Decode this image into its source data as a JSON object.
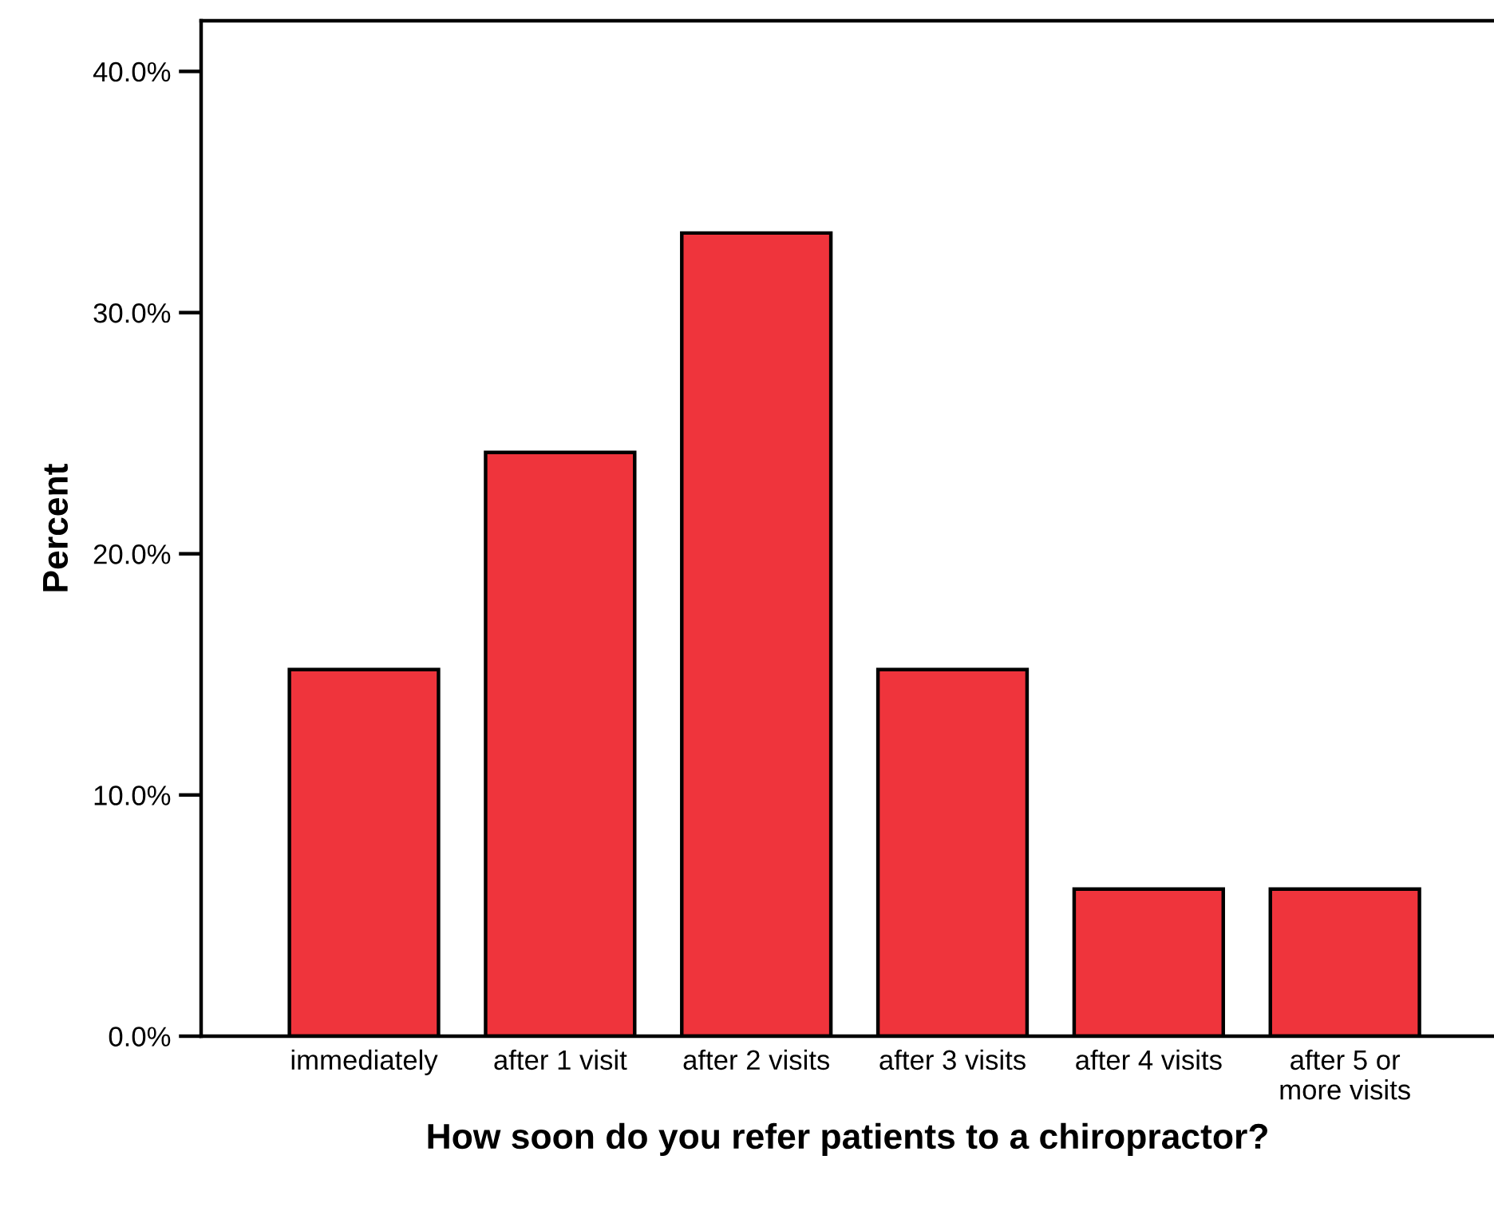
{
  "chart_data": {
    "type": "bar",
    "xlabel": "How soon do you refer patients to a chiropractor?",
    "ylabel": "Percent",
    "categories": [
      "immediately",
      "after 1 visit",
      "after 2 visits",
      "after 3 visits",
      "after 4 visits",
      "after 5 or\nmore visits"
    ],
    "values": [
      15.2,
      24.2,
      33.3,
      15.2,
      6.1,
      6.1
    ],
    "color": "#ef343c",
    "ylim": [
      0,
      42.1
    ],
    "yticks": [
      {
        "value": 0,
        "label": "0.0%"
      },
      {
        "value": 10,
        "label": "10.0%"
      },
      {
        "value": 20,
        "label": "20.0%"
      },
      {
        "value": 30,
        "label": "30.0%"
      },
      {
        "value": 40,
        "label": "40.0%"
      }
    ],
    "grid": false,
    "legend": false
  }
}
